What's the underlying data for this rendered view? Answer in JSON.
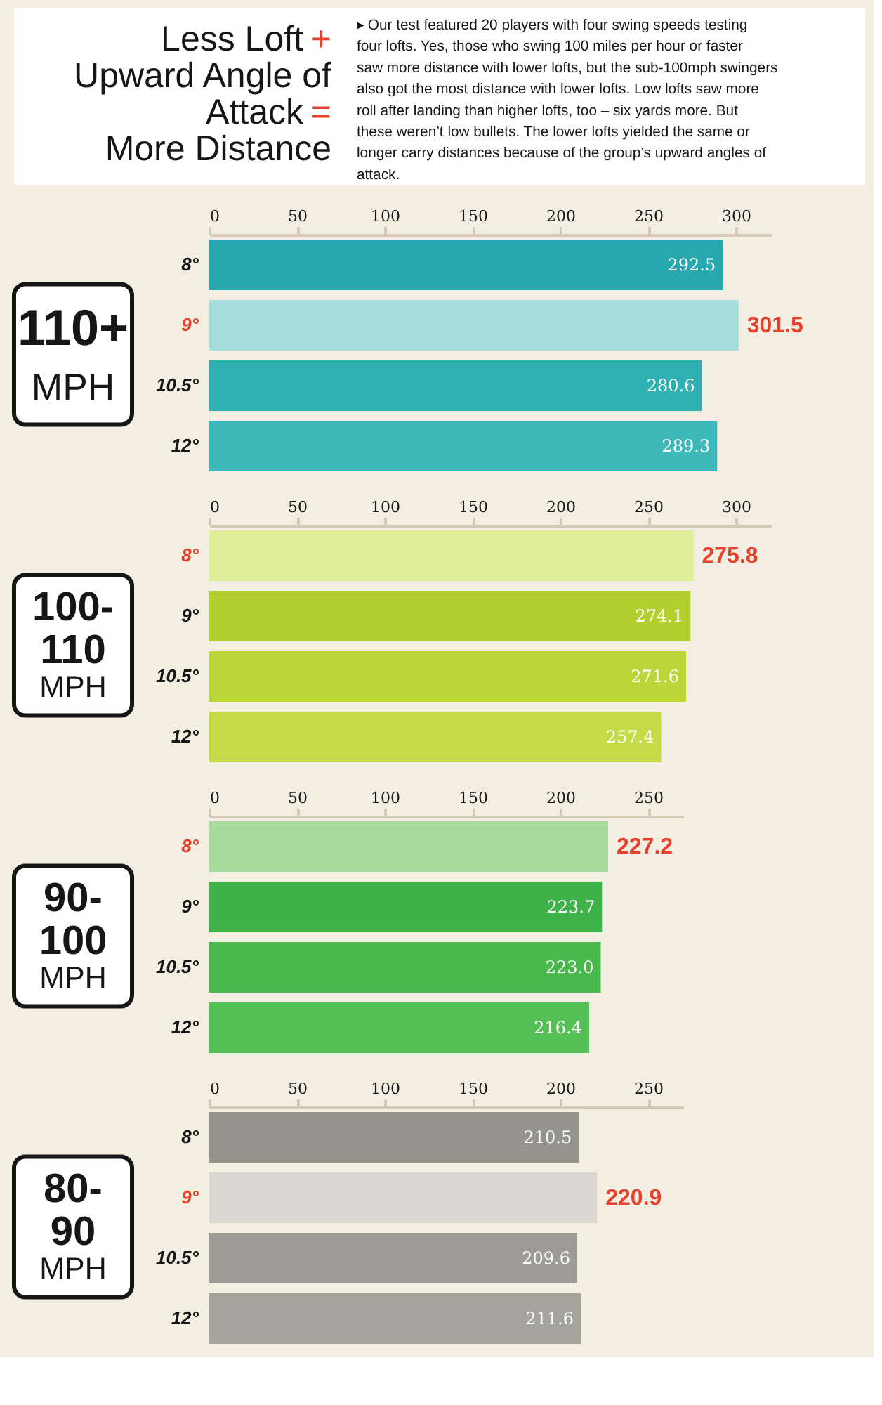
{
  "chart_data": [
    {
      "type": "other",
      "title": "Less Loft + Upward Angle of Attack = More Distance",
      "subtitle": "▸ Our test featured 20 players with four swing speeds testing four lofts. Yes, those who swing 100 miles per hour or faster saw more distance with lower lofts, but the sub-100mph swingers also got the most distance with lower lofts. Low lofts saw more roll after landing than higher lofts, too – six yards more. But these weren’t low bullets. The lower lofts yielded the same or longer carry distances because of the group’s upward angles of attack."
    },
    {
      "type": "bar",
      "title": "110+ MPH",
      "orientation": "horizontal",
      "categories": [
        "8°",
        "9°",
        "10.5°",
        "12°"
      ],
      "values": [
        292.5,
        301.5,
        280.6,
        289.3
      ],
      "colors": [
        "#27a9af",
        "#a6dedd",
        "#2fb1b4",
        "#3db9ba"
      ],
      "xlim": [
        0,
        320
      ],
      "xticks": [
        0,
        50,
        100,
        150,
        200,
        250,
        300
      ],
      "data_labels": true
    },
    {
      "type": "bar",
      "title": "100-110 MPH",
      "orientation": "horizontal",
      "categories": [
        "8°",
        "9°",
        "10.5°",
        "12°"
      ],
      "values": [
        275.8,
        274.1,
        271.6,
        257.4
      ],
      "colors": [
        "#e0ee98",
        "#b3cf2e",
        "#bcd63a",
        "#c5dc48"
      ],
      "xlim": [
        0,
        320
      ],
      "xticks": [
        0,
        50,
        100,
        150,
        200,
        250,
        300
      ],
      "data_labels": true
    },
    {
      "type": "bar",
      "title": "90-100 MPH",
      "orientation": "horizontal",
      "categories": [
        "8°",
        "9°",
        "10.5°",
        "12°"
      ],
      "values": [
        227.2,
        223.7,
        223.0,
        216.4
      ],
      "value_labels": [
        "227.2",
        "223.7",
        "223.0",
        "216.4"
      ],
      "colors": [
        "#a7dc9c",
        "#3fb24a",
        "#49b94d",
        "#55c055"
      ],
      "xlim": [
        0,
        270
      ],
      "xticks": [
        0,
        50,
        100,
        150,
        200,
        250
      ]
    },
    {
      "type": "bar",
      "title": "80-90 MPH",
      "orientation": "horizontal",
      "categories": [
        "8°",
        "9°",
        "10.5°",
        "12°"
      ],
      "values": [
        210.5,
        220.9,
        209.6,
        211.6
      ],
      "colors": [
        "#96958d",
        "#d9d8d0",
        "#9d9c94",
        "#a5a49c"
      ],
      "xlim": [
        0,
        270
      ],
      "xticks": [
        0,
        50,
        100,
        150,
        200,
        250
      ],
      "data_labels": true
    }
  ]
}
